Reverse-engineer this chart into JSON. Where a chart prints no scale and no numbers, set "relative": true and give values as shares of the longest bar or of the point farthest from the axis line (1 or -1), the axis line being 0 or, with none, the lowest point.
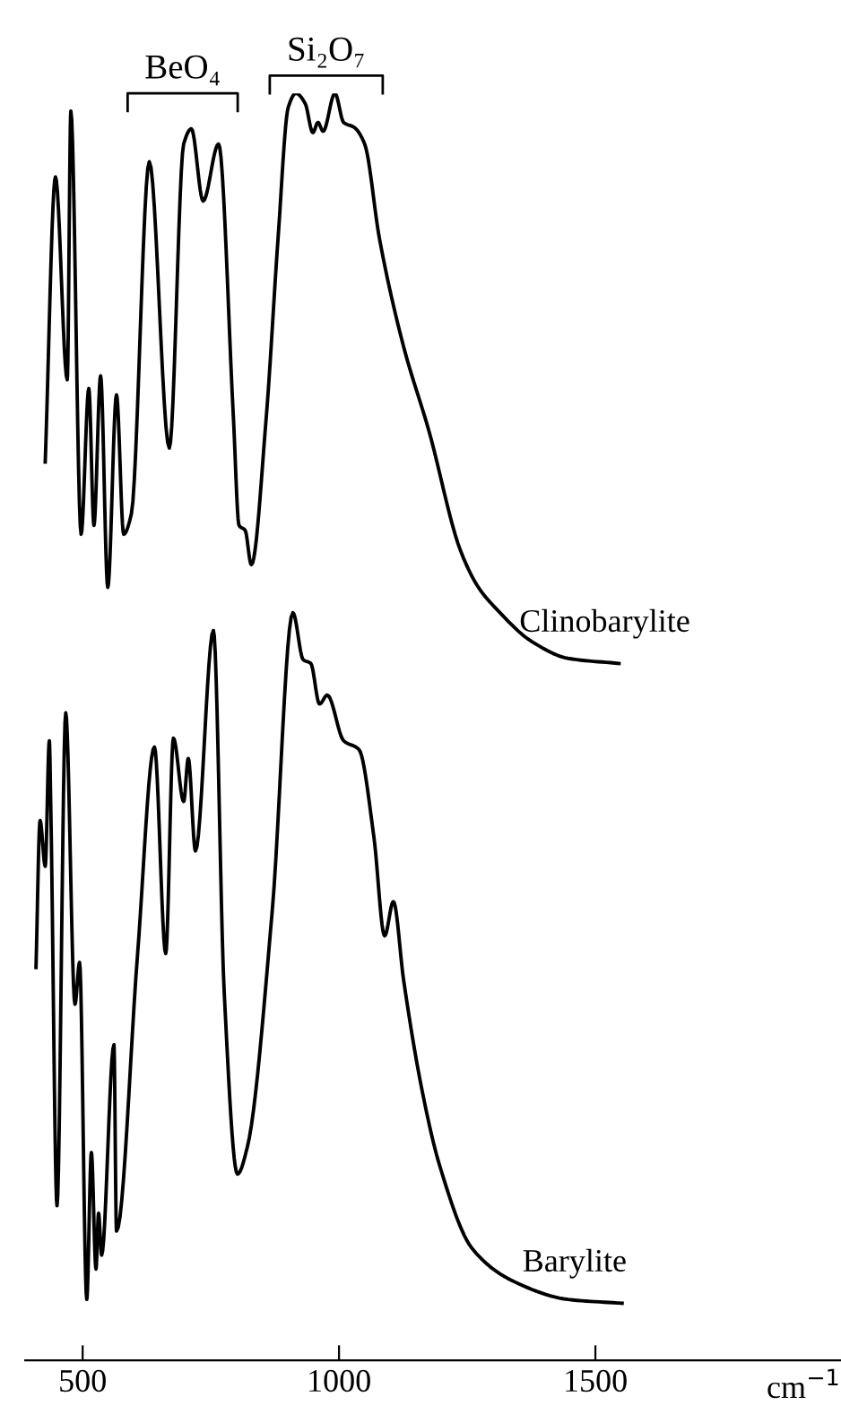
{
  "chart_data": {
    "type": "line",
    "relative": true,
    "xlabel": "cm$^{−1}$",
    "xlim": [
      388,
      1979
    ],
    "xticks": [
      500,
      1000,
      1500
    ],
    "grid": false,
    "legend": false,
    "marker": "none",
    "line_style": "solid",
    "annotations": [
      "BeO₄",
      "Si₂O₇"
    ],
    "series": [
      {
        "name": "Clinobarylite",
        "color": "#000000",
        "x": [
          427,
          447,
          470,
          477,
          497,
          512,
          522,
          535,
          549,
          566,
          580,
          595,
          630,
          669,
          697,
          712,
          735,
          765,
          794,
          805,
          817,
          829,
          858,
          881,
          901,
          916,
          934,
          949,
          959,
          969,
          992,
          1009,
          1030,
          1050,
          1079,
          1126,
          1175,
          1237,
          1272,
          1307,
          1377,
          1447,
          1546
        ],
        "values": [
          0.709,
          0.934,
          0.774,
          0.986,
          0.652,
          0.767,
          0.659,
          0.777,
          0.61,
          0.762,
          0.652,
          0.668,
          0.946,
          0.72,
          0.96,
          0.972,
          0.915,
          0.96,
          0.744,
          0.659,
          0.655,
          0.628,
          0.744,
          0.885,
          0.989,
          1.0,
          0.992,
          0.969,
          0.977,
          0.97,
          1.0,
          0.977,
          0.973,
          0.96,
          0.885,
          0.8,
          0.734,
          0.639,
          0.61,
          0.593,
          0.567,
          0.554,
          0.55
        ]
      },
      {
        "name": "Barylite",
        "color": "#000000",
        "x": [
          409,
          417,
          427,
          435,
          438,
          450,
          467,
          485,
          494,
          508,
          517,
          526,
          531,
          537,
          561,
          566,
          607,
          640,
          662,
          677,
          697,
          706,
          720,
          755,
          776,
          802,
          821,
          870,
          910,
          930,
          945,
          962,
          977,
          1009,
          1039,
          1068,
          1089,
          1106,
          1126,
          1161,
          1196,
          1260,
          1342,
          1447,
          1552
        ],
        "values": [
          0.31,
          0.426,
          0.39,
          0.489,
          0.433,
          0.122,
          0.511,
          0.281,
          0.314,
          0.048,
          0.164,
          0.072,
          0.116,
          0.083,
          0.249,
          0.102,
          0.32,
          0.484,
          0.321,
          0.491,
          0.441,
          0.475,
          0.402,
          0.576,
          0.291,
          0.147,
          0.168,
          0.356,
          0.59,
          0.553,
          0.55,
          0.518,
          0.525,
          0.489,
          0.482,
          0.413,
          0.335,
          0.362,
          0.3,
          0.215,
          0.154,
          0.088,
          0.062,
          0.048,
          0.045
        ]
      }
    ]
  }
}
